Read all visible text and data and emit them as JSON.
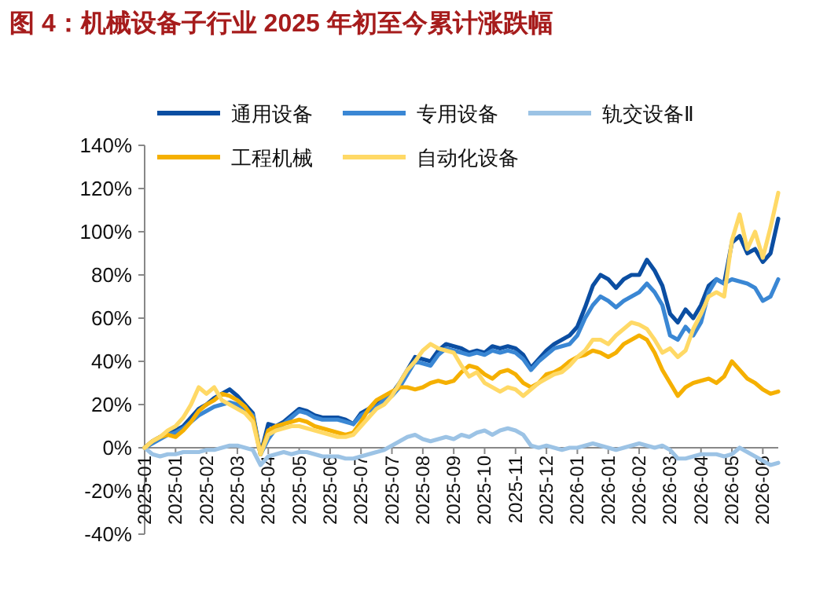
{
  "chart_data": {
    "type": "line",
    "title": "图 4：机械设备子行业 2025 年初至今累计涨跌幅",
    "categories": [
      "2025-01",
      null,
      null,
      null,
      "2025-01",
      null,
      null,
      null,
      "2025-02",
      null,
      null,
      null,
      "2025-03",
      null,
      null,
      null,
      "2025-04",
      null,
      null,
      null,
      "2025-05",
      null,
      null,
      null,
      "2025-06",
      null,
      null,
      null,
      "2025-07",
      null,
      null,
      null,
      "2025-07",
      null,
      null,
      null,
      "2025-08",
      null,
      null,
      null,
      "2025-09",
      null,
      null,
      null,
      "2025-10",
      null,
      null,
      null,
      "2025-11",
      null,
      null,
      null,
      "2025-12",
      null,
      null,
      null,
      "2026-01",
      null,
      null,
      null,
      "2026-01",
      null,
      null,
      null,
      "2026-02",
      null,
      null,
      null,
      "2026-03",
      null,
      null,
      null,
      "2026-04",
      null,
      null,
      null,
      "2026-05",
      null,
      null,
      null,
      "2026-06",
      null,
      null
    ],
    "series": [
      {
        "name": "通用设备",
        "color": "#0b4ea2",
        "values": [
          0,
          3,
          5,
          7,
          8,
          10,
          14,
          18,
          20,
          23,
          25,
          27,
          24,
          20,
          16,
          -3,
          11,
          10,
          12,
          15,
          18,
          17,
          15,
          14,
          14,
          14,
          13,
          11,
          16,
          18,
          20,
          23,
          25,
          30,
          36,
          42,
          41,
          40,
          45,
          48,
          47,
          46,
          44,
          45,
          44,
          47,
          46,
          47,
          46,
          43,
          37,
          41,
          45,
          48,
          50,
          52,
          56,
          65,
          75,
          80,
          78,
          74,
          78,
          80,
          80,
          87,
          82,
          75,
          62,
          58,
          64,
          60,
          66,
          75,
          78,
          76,
          95,
          98,
          90,
          92,
          86,
          90,
          106
        ]
      },
      {
        "name": "专用设备",
        "color": "#3a87d4",
        "values": [
          0,
          2,
          4,
          6,
          7,
          9,
          12,
          15,
          17,
          19,
          20,
          21,
          20,
          18,
          15,
          -3,
          4,
          9,
          11,
          14,
          17,
          16,
          14,
          13,
          13,
          13,
          12,
          11,
          15,
          17,
          19,
          22,
          24,
          28,
          34,
          40,
          39,
          38,
          43,
          46,
          45,
          44,
          43,
          44,
          43,
          45,
          44,
          45,
          44,
          41,
          36,
          40,
          43,
          46,
          47,
          48,
          52,
          60,
          66,
          70,
          68,
          65,
          68,
          70,
          72,
          76,
          72,
          66,
          52,
          50,
          56,
          52,
          58,
          72,
          78,
          76,
          78,
          77,
          76,
          74,
          68,
          70,
          78
        ]
      },
      {
        "name": "轨交设备Ⅱ",
        "color": "#9cc3e5",
        "values": [
          0,
          -3,
          -4,
          -3,
          -3,
          -2,
          -2,
          -2,
          -1,
          -1,
          0,
          1,
          1,
          0,
          -1,
          -8,
          -4,
          -3,
          -2,
          -3,
          -2,
          -2,
          -3,
          -4,
          -4,
          -4,
          -5,
          -5,
          -4,
          -3,
          -2,
          -1,
          1,
          3,
          5,
          6,
          4,
          3,
          4,
          5,
          4,
          6,
          5,
          7,
          8,
          6,
          8,
          9,
          8,
          6,
          1,
          0,
          1,
          0,
          -1,
          0,
          0,
          1,
          2,
          1,
          0,
          -1,
          0,
          1,
          2,
          1,
          0,
          1,
          -1,
          -5,
          -5,
          -4,
          -3,
          -3,
          -3,
          -4,
          -3,
          0,
          -2,
          -4,
          -6,
          -8,
          -7
        ]
      },
      {
        "name": "工程机械",
        "color": "#f5b000",
        "values": [
          0,
          3,
          5,
          6,
          5,
          8,
          12,
          17,
          20,
          22,
          25,
          24,
          22,
          19,
          14,
          -3,
          8,
          10,
          11,
          12,
          13,
          12,
          10,
          9,
          8,
          7,
          6,
          7,
          12,
          18,
          22,
          24,
          26,
          28,
          28,
          27,
          28,
          30,
          31,
          30,
          31,
          35,
          38,
          37,
          34,
          32,
          35,
          36,
          34,
          30,
          28,
          30,
          34,
          35,
          37,
          40,
          42,
          43,
          45,
          44,
          42,
          44,
          48,
          50,
          52,
          50,
          44,
          36,
          30,
          24,
          28,
          30,
          31,
          32,
          30,
          33,
          40,
          36,
          32,
          30,
          27,
          25,
          26
        ]
      },
      {
        "name": "自动化设备",
        "color": "#ffd966",
        "values": [
          0,
          3,
          5,
          8,
          10,
          14,
          20,
          28,
          25,
          28,
          22,
          20,
          18,
          16,
          12,
          -3,
          6,
          8,
          9,
          10,
          10,
          9,
          8,
          7,
          6,
          5,
          5,
          6,
          10,
          14,
          18,
          20,
          24,
          30,
          36,
          40,
          45,
          48,
          46,
          45,
          44,
          38,
          33,
          35,
          30,
          28,
          26,
          28,
          27,
          24,
          27,
          30,
          32,
          34,
          35,
          38,
          42,
          45,
          50,
          50,
          48,
          52,
          55,
          58,
          57,
          55,
          50,
          44,
          46,
          42,
          45,
          55,
          62,
          70,
          72,
          70,
          96,
          108,
          92,
          100,
          88,
          102,
          118
        ]
      }
    ],
    "ylim": [
      -40,
      140
    ],
    "yticks": [
      {
        "value": -40,
        "label": "-40%"
      },
      {
        "value": -20,
        "label": "-20%"
      },
      {
        "value": 0,
        "label": "0%"
      },
      {
        "value": 20,
        "label": "20%"
      },
      {
        "value": 40,
        "label": "40%"
      },
      {
        "value": 60,
        "label": "60%"
      },
      {
        "value": 80,
        "label": "80%"
      },
      {
        "value": 100,
        "label": "100%"
      },
      {
        "value": 120,
        "label": "120%"
      },
      {
        "value": 140,
        "label": "140%"
      }
    ],
    "legend": "top left",
    "marker": "none",
    "line_style": "solid"
  }
}
